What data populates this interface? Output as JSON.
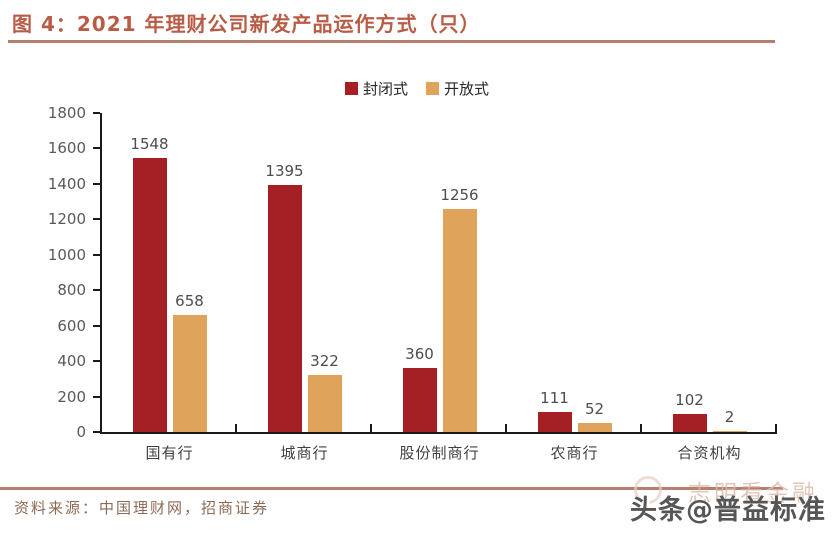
{
  "header": {
    "title": "图 4：2021 年理财公司新发产品运作方式（只）"
  },
  "chart_data": {
    "type": "bar",
    "title": "2021 年理财公司新发产品运作方式（只）",
    "categories": [
      "国有行",
      "城商行",
      "股份制商行",
      "农商行",
      "合资机构"
    ],
    "series": [
      {
        "name": "封闭式",
        "color": "#A42024",
        "values": [
          1548,
          1395,
          360,
          111,
          102
        ]
      },
      {
        "name": "开放式",
        "color": "#E0A35C",
        "values": [
          658,
          322,
          1256,
          52,
          2
        ]
      }
    ],
    "xlabel": "",
    "ylabel": "",
    "ylim": [
      0,
      1800
    ],
    "yticks": [
      0,
      200,
      400,
      600,
      800,
      1000,
      1200,
      1400,
      1600,
      1800
    ],
    "grid": false,
    "legend_position": "top-center",
    "value_labels": true
  },
  "footer": {
    "source": "资料来源：中国理财网，招商证券",
    "watermark_main": "头条@普益标准",
    "watermark_faint": "志明看金融"
  },
  "colors": {
    "title": "#B85C45",
    "rule": "#B2806C",
    "closed_series": "#A42024",
    "open_series": "#E0A35C",
    "axis": "#1A1A1A",
    "tick_label": "#595959",
    "value_label": "#4D4D4D",
    "category_label": "#404040",
    "source_text": "#8C6A55"
  }
}
